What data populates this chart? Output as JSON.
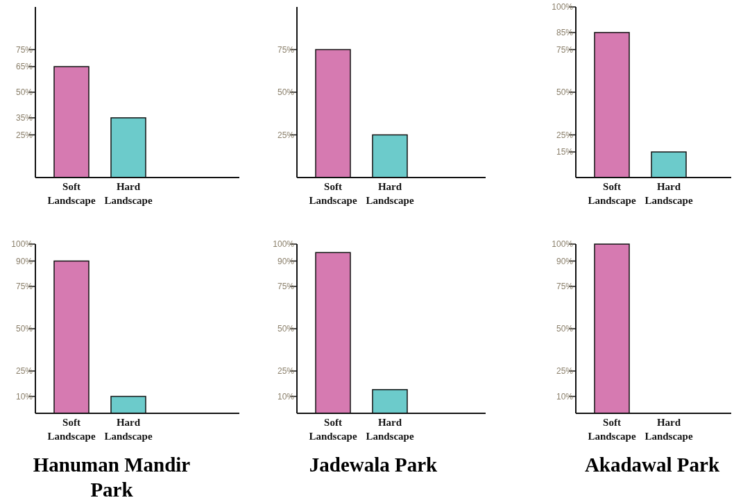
{
  "chart_data": [
    {
      "type": "bar",
      "categories": [
        "Soft Landscape",
        "Hard Landscape"
      ],
      "values": [
        65,
        35
      ],
      "colors": [
        "#d67ab1",
        "#6ccbcb"
      ],
      "ylim": [
        0,
        100
      ],
      "yticks": [
        {
          "value": 25,
          "label": "25%"
        },
        {
          "value": 35,
          "label": "35%"
        },
        {
          "value": 50,
          "label": "50%"
        },
        {
          "value": 65,
          "label": "65%"
        },
        {
          "value": 75,
          "label": "75%"
        }
      ]
    },
    {
      "type": "bar",
      "categories": [
        "Soft Landscape",
        "Hard Landscape"
      ],
      "values": [
        75,
        25
      ],
      "colors": [
        "#d67ab1",
        "#6ccbcb"
      ],
      "ylim": [
        0,
        100
      ],
      "yticks": [
        {
          "value": 25,
          "label": "25%"
        },
        {
          "value": 50,
          "label": "50%"
        },
        {
          "value": 75,
          "label": "75%"
        }
      ]
    },
    {
      "type": "bar",
      "categories": [
        "Soft Landscape",
        "Hard Landscape"
      ],
      "values": [
        85,
        15
      ],
      "colors": [
        "#d67ab1",
        "#6ccbcb"
      ],
      "ylim": [
        0,
        100
      ],
      "yticks": [
        {
          "value": 15,
          "label": "15%"
        },
        {
          "value": 25,
          "label": "25%"
        },
        {
          "value": 50,
          "label": "50%"
        },
        {
          "value": 75,
          "label": "75%"
        },
        {
          "value": 85,
          "label": "85%"
        },
        {
          "value": 100,
          "label": "100%"
        }
      ]
    },
    {
      "type": "bar",
      "title": "Hanuman Mandir Park",
      "categories": [
        "Soft Landscape",
        "Hard Landscape"
      ],
      "values": [
        90,
        10
      ],
      "colors": [
        "#d67ab1",
        "#6ccbcb"
      ],
      "ylim": [
        0,
        100
      ],
      "yticks": [
        {
          "value": 10,
          "label": "10%"
        },
        {
          "value": 25,
          "label": "25%"
        },
        {
          "value": 50,
          "label": "50%"
        },
        {
          "value": 75,
          "label": "75%"
        },
        {
          "value": 90,
          "label": "90%"
        },
        {
          "value": 100,
          "label": "100%"
        }
      ]
    },
    {
      "type": "bar",
      "title": "Jadewala Park",
      "categories": [
        "Soft Landscape",
        "Hard Landscape"
      ],
      "values": [
        95,
        14
      ],
      "colors": [
        "#d67ab1",
        "#6ccbcb"
      ],
      "ylim": [
        0,
        100
      ],
      "yticks": [
        {
          "value": 10,
          "label": "10%"
        },
        {
          "value": 25,
          "label": "25%"
        },
        {
          "value": 50,
          "label": "50%"
        },
        {
          "value": 75,
          "label": "75%"
        },
        {
          "value": 90,
          "label": "90%"
        },
        {
          "value": 100,
          "label": "100%"
        }
      ]
    },
    {
      "type": "bar",
      "title": "Akadawal Park",
      "categories": [
        "Soft Landscape",
        "Hard Landscape"
      ],
      "values": [
        100,
        0
      ],
      "colors": [
        "#d67ab1",
        "#6ccbcb"
      ],
      "ylim": [
        0,
        100
      ],
      "yticks": [
        {
          "value": 10,
          "label": "10%"
        },
        {
          "value": 25,
          "label": "25%"
        },
        {
          "value": 50,
          "label": "50%"
        },
        {
          "value": 75,
          "label": "75%"
        },
        {
          "value": 90,
          "label": "90%"
        },
        {
          "value": 100,
          "label": "100%"
        }
      ]
    }
  ]
}
